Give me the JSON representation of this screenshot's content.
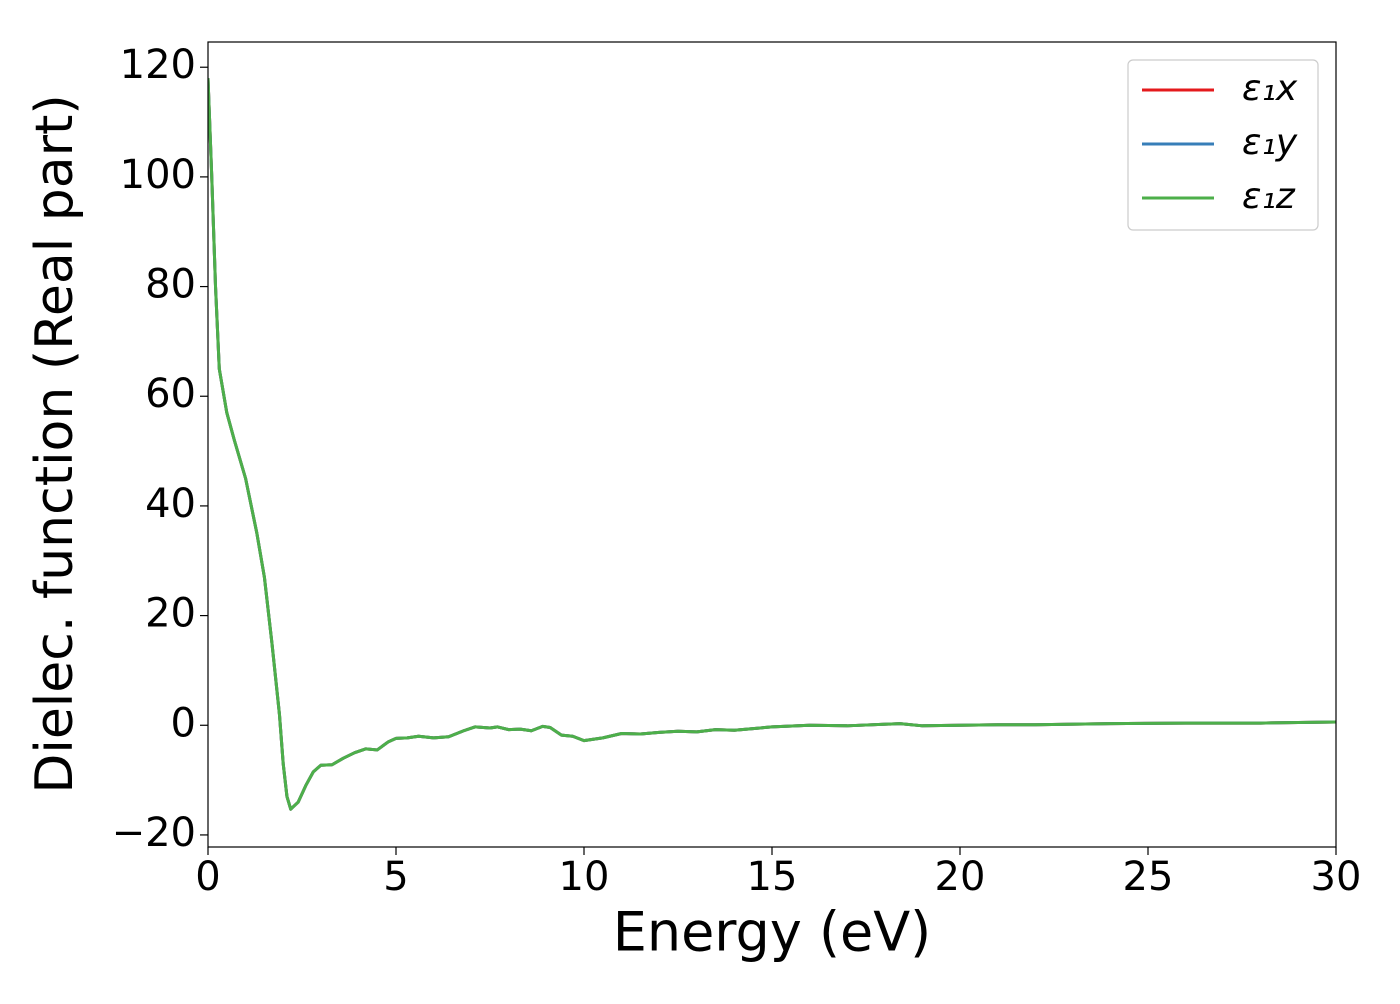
{
  "chart_data": {
    "type": "line",
    "xlabel": "Energy (eV)",
    "ylabel": "Dielec. function (Real part)",
    "x": [
      0,
      0.1,
      0.2,
      0.3,
      0.5,
      0.7,
      1.0,
      1.3,
      1.5,
      1.7,
      1.9,
      2.0,
      2.1,
      2.2,
      2.4,
      2.6,
      2.8,
      3.0,
      3.3,
      3.6,
      3.9,
      4.2,
      4.5,
      4.8,
      5.0,
      5.3,
      5.6,
      6.0,
      6.4,
      6.8,
      7.1,
      7.5,
      7.7,
      8.0,
      8.3,
      8.6,
      8.9,
      9.1,
      9.4,
      9.7,
      10.0,
      10.5,
      11.0,
      11.5,
      12.0,
      12.5,
      13.0,
      13.5,
      14.0,
      15.0,
      16.0,
      17.0,
      18.4,
      19.0,
      20.0,
      21.0,
      22.0,
      24.0,
      26.0,
      28.0,
      30.0
    ],
    "series": [
      {
        "name": "ε₁x",
        "color": "#e41a1c",
        "values": [
          118,
          100,
          80,
          65,
          57,
          52,
          45,
          35,
          27,
          15,
          2,
          -7,
          -13,
          -15.3,
          -14,
          -11,
          -8.5,
          -7.3,
          -7.2,
          -6,
          -5,
          -4.3,
          -4.5,
          -3,
          -2.4,
          -2.3,
          -2,
          -2.3,
          -2.1,
          -1,
          -0.3,
          -0.5,
          -0.3,
          -0.8,
          -0.7,
          -1,
          -0.2,
          -0.4,
          -1.8,
          -2,
          -2.8,
          -2.3,
          -1.5,
          -1.6,
          -1.3,
          -1.1,
          -1.2,
          -0.8,
          -0.9,
          -0.3,
          0,
          -0.1,
          0.3,
          -0.1,
          0,
          0.1,
          0.1,
          0.3,
          0.4,
          0.4,
          0.6
        ]
      },
      {
        "name": "ε₁y",
        "color": "#377eb8",
        "values": [
          118,
          100,
          80,
          65,
          57,
          52,
          45,
          35,
          27,
          15,
          2,
          -7,
          -13,
          -15.3,
          -14,
          -11,
          -8.5,
          -7.3,
          -7.2,
          -6,
          -5,
          -4.3,
          -4.5,
          -3,
          -2.4,
          -2.3,
          -2,
          -2.3,
          -2.1,
          -1,
          -0.3,
          -0.5,
          -0.3,
          -0.8,
          -0.7,
          -1,
          -0.2,
          -0.4,
          -1.8,
          -2,
          -2.8,
          -2.3,
          -1.5,
          -1.6,
          -1.3,
          -1.1,
          -1.2,
          -0.8,
          -0.9,
          -0.3,
          0,
          -0.1,
          0.3,
          -0.1,
          0,
          0.1,
          0.1,
          0.3,
          0.4,
          0.4,
          0.6
        ]
      },
      {
        "name": "ε₁z",
        "color": "#4daf4a",
        "values": [
          118,
          100,
          80,
          65,
          57,
          52,
          45,
          35,
          27,
          15,
          2,
          -7,
          -13,
          -15.3,
          -14,
          -11,
          -8.5,
          -7.3,
          -7.2,
          -6,
          -5,
          -4.3,
          -4.5,
          -3,
          -2.4,
          -2.3,
          -2,
          -2.3,
          -2.1,
          -1,
          -0.3,
          -0.5,
          -0.3,
          -0.8,
          -0.7,
          -1,
          -0.2,
          -0.4,
          -1.8,
          -2,
          -2.8,
          -2.3,
          -1.5,
          -1.6,
          -1.3,
          -1.1,
          -1.2,
          -0.8,
          -0.9,
          -0.3,
          0,
          -0.1,
          0.3,
          -0.1,
          0,
          0.1,
          0.1,
          0.3,
          0.4,
          0.4,
          0.6
        ]
      }
    ],
    "xlim": [
      0,
      30
    ],
    "xticks": [
      0,
      5,
      10,
      15,
      20,
      25,
      30
    ],
    "ylim": [
      -22.2,
      124.6
    ],
    "yticks": [
      {
        "value": -20,
        "label": "−20"
      },
      0,
      20,
      40,
      60,
      80,
      100,
      120
    ],
    "legend": "upper-right"
  }
}
